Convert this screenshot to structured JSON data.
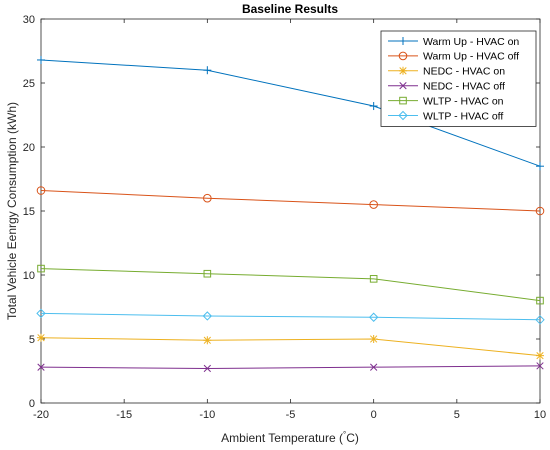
{
  "chart_data": {
    "type": "line",
    "title": "Baseline Results",
    "xlabel_prefix": "Ambient Temperature (",
    "xlabel_degree": "°",
    "xlabel_suffix": "C)",
    "ylabel": "Total Vehicle Eenrgy Consumption (kWh)",
    "xlim": [
      -20,
      10
    ],
    "ylim": [
      0,
      30
    ],
    "xticks": [
      -20,
      -15,
      -10,
      -5,
      0,
      5,
      10
    ],
    "yticks": [
      0,
      5,
      10,
      15,
      20,
      25,
      30
    ],
    "x": [
      -20,
      -10,
      0,
      10
    ],
    "grid": false,
    "legend_position": "top-right",
    "series": [
      {
        "name": "Warm Up - HVAC on",
        "values": [
          26.8,
          26.0,
          23.2,
          18.5
        ],
        "color": "#0072BD",
        "marker": "plus"
      },
      {
        "name": "Warm Up - HVAC off",
        "values": [
          16.6,
          16.0,
          15.5,
          15.0
        ],
        "color": "#D95319",
        "marker": "circle"
      },
      {
        "name": "NEDC - HVAC on",
        "values": [
          5.1,
          4.9,
          5.0,
          3.7
        ],
        "color": "#EDB120",
        "marker": "asterisk"
      },
      {
        "name": "NEDC - HVAC off",
        "values": [
          2.8,
          2.7,
          2.8,
          2.9
        ],
        "color": "#7E2F8E",
        "marker": "x"
      },
      {
        "name": "WLTP - HVAC on",
        "values": [
          10.5,
          10.1,
          9.7,
          8.0
        ],
        "color": "#77AC30",
        "marker": "square"
      },
      {
        "name": "WLTP - HVAC off",
        "values": [
          7.0,
          6.8,
          6.7,
          6.5
        ],
        "color": "#4DBEEE",
        "marker": "diamond"
      }
    ]
  }
}
